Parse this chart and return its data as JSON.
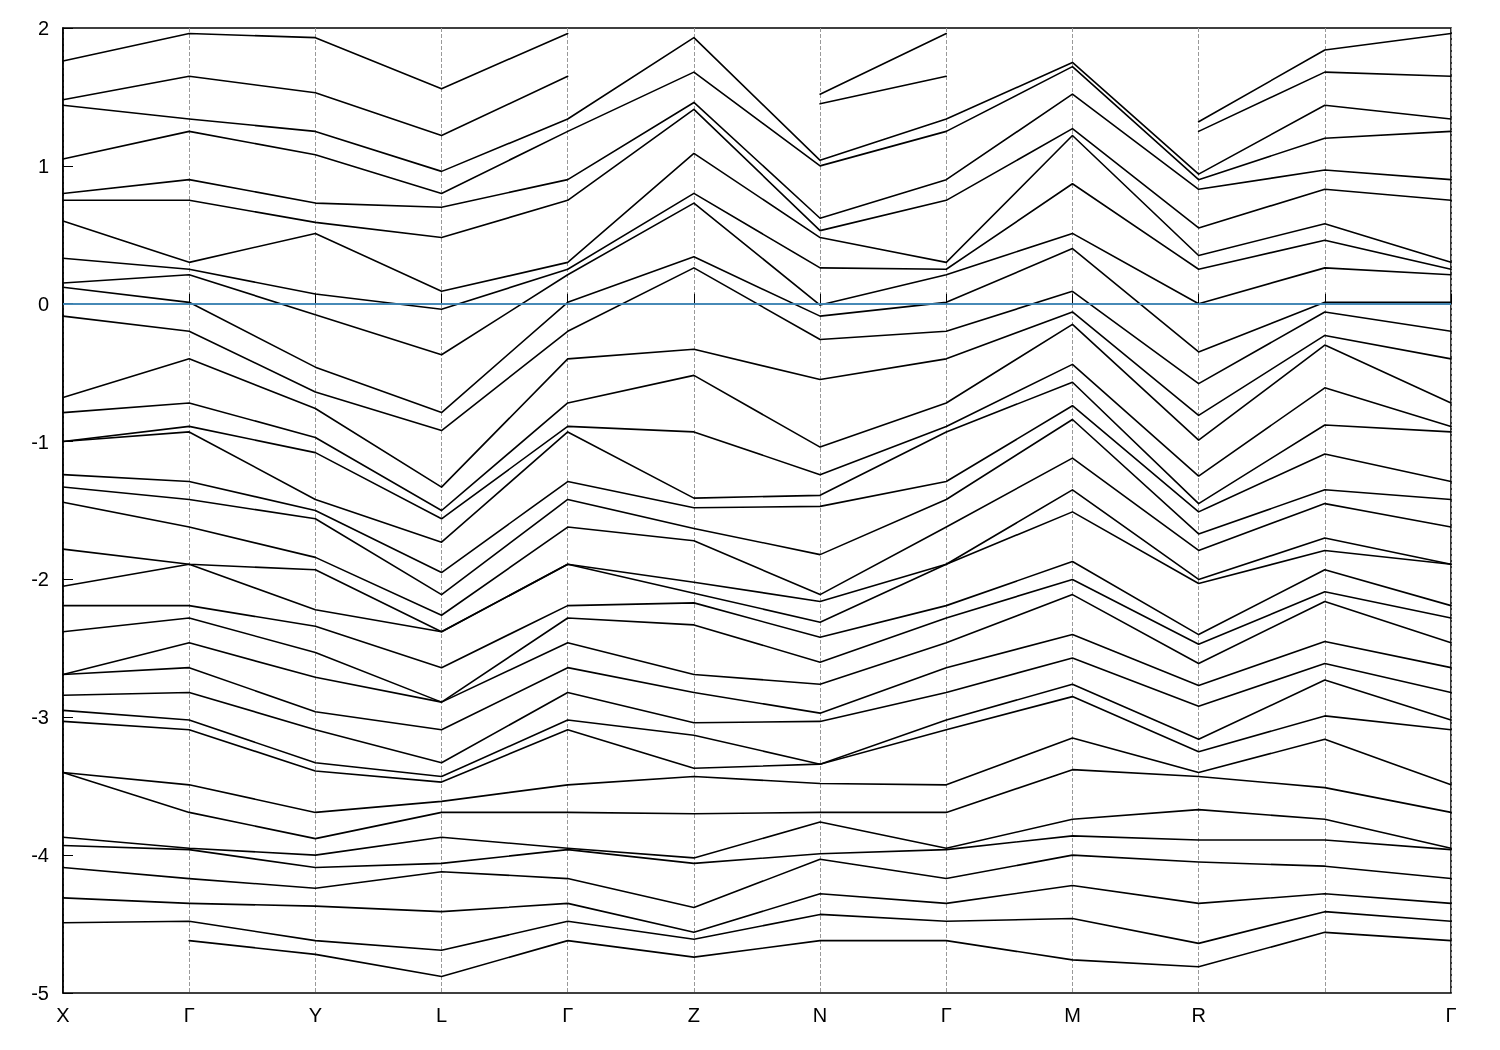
{
  "chart_data": {
    "type": "line",
    "categories": [
      "X",
      "Γ",
      "Y",
      "L",
      "Γ",
      "Z",
      "N",
      "Γ",
      "M",
      "R",
      null,
      "Γ"
    ],
    "ylim": [
      -5,
      2
    ],
    "yticks": [
      -5,
      -4,
      -3,
      -2,
      -1,
      0,
      1,
      2
    ],
    "grid": "x",
    "marker": "none",
    "line_style": "solid",
    "ref_lines": [
      {
        "axis": "y",
        "value": 0,
        "color": "#4aa3df"
      }
    ],
    "series": [
      {
        "color": "#000000",
        "values": [
          null,
          -4.62,
          -4.72,
          -4.88,
          -4.62,
          -4.74,
          -4.62,
          -4.62,
          -4.76,
          -4.81,
          -4.56,
          -4.62
        ]
      },
      {
        "color": "#000000",
        "values": [
          -4.49,
          -4.48,
          -4.62,
          -4.69,
          -4.48,
          -4.61,
          -4.43,
          -4.48,
          -4.46,
          -4.64,
          -4.41,
          -4.48
        ]
      },
      {
        "color": "#000000",
        "values": [
          -4.31,
          -4.35,
          -4.37,
          -4.41,
          -4.35,
          -4.56,
          -4.28,
          -4.35,
          -4.22,
          -4.35,
          -4.28,
          -4.35
        ]
      },
      {
        "color": "#000000",
        "values": [
          -4.09,
          -4.17,
          -4.24,
          -4.12,
          -4.17,
          -4.38,
          -4.03,
          -4.17,
          -4.0,
          -4.05,
          -4.08,
          -4.17
        ]
      },
      {
        "color": "#000000",
        "values": [
          -3.93,
          -3.96,
          -4.09,
          -4.06,
          -3.96,
          -4.06,
          -3.99,
          -3.96,
          -3.86,
          -3.89,
          -3.89,
          -3.96
        ]
      },
      {
        "color": "#000000",
        "values": [
          -3.87,
          -3.95,
          -4.0,
          -3.87,
          -3.95,
          -4.02,
          -3.76,
          -3.95,
          -3.74,
          -3.67,
          -3.74,
          -3.95
        ]
      },
      {
        "color": "#000000",
        "values": [
          -3.4,
          -3.69,
          -3.88,
          -3.69,
          -3.69,
          -3.7,
          -3.69,
          -3.69,
          -3.38,
          -3.43,
          -3.51,
          -3.69
        ]
      },
      {
        "color": "#000000",
        "values": [
          -3.4,
          -3.49,
          -3.69,
          -3.61,
          -3.49,
          -3.43,
          -3.48,
          -3.49,
          -3.15,
          -3.4,
          -3.16,
          -3.49
        ]
      },
      {
        "color": "#000000",
        "values": [
          -3.03,
          -3.09,
          -3.39,
          -3.47,
          -3.09,
          -3.37,
          -3.34,
          -3.09,
          -2.85,
          -3.25,
          -2.99,
          -3.09
        ]
      },
      {
        "color": "#000000",
        "values": [
          -2.95,
          -3.02,
          -3.33,
          -3.43,
          -3.02,
          -3.13,
          -3.34,
          -3.02,
          -2.76,
          -3.16,
          -2.73,
          -3.02
        ]
      },
      {
        "color": "#000000",
        "values": [
          -2.84,
          -2.82,
          -3.09,
          -3.33,
          -2.82,
          -3.04,
          -3.03,
          -2.82,
          -2.57,
          -2.92,
          -2.61,
          -2.82
        ]
      },
      {
        "color": "#000000",
        "values": [
          -2.69,
          -2.64,
          -2.96,
          -3.09,
          -2.64,
          -2.82,
          -2.97,
          -2.64,
          -2.4,
          -2.77,
          -2.45,
          -2.64
        ]
      },
      {
        "color": "#000000",
        "values": [
          -2.69,
          -2.46,
          -2.71,
          -2.89,
          -2.46,
          -2.69,
          -2.76,
          -2.46,
          -2.11,
          -2.61,
          -2.16,
          -2.46
        ]
      },
      {
        "color": "#000000",
        "values": [
          -2.38,
          -2.28,
          -2.53,
          -2.89,
          -2.28,
          -2.33,
          -2.6,
          -2.28,
          -2.0,
          -2.47,
          -2.09,
          -2.28
        ]
      },
      {
        "color": "#000000",
        "values": [
          -2.19,
          -2.19,
          -2.34,
          -2.64,
          -2.19,
          -2.17,
          -2.42,
          -2.19,
          -1.87,
          -2.4,
          -1.93,
          -2.19
        ]
      },
      {
        "color": "#000000",
        "values": [
          -2.05,
          -1.89,
          -2.22,
          -2.38,
          -1.89,
          -2.1,
          -2.31,
          -1.89,
          -1.51,
          -2.03,
          -1.79,
          -1.89
        ]
      },
      {
        "color": "#000000",
        "values": [
          -1.78,
          -1.89,
          -1.93,
          -2.38,
          -1.89,
          -2.02,
          -2.16,
          -1.89,
          -1.35,
          -2.0,
          -1.7,
          -1.89
        ]
      },
      {
        "color": "#000000",
        "values": [
          -1.44,
          -1.62,
          -1.84,
          -2.26,
          -1.62,
          -1.72,
          -2.11,
          -1.62,
          -1.12,
          -1.79,
          -1.45,
          -1.62
        ]
      },
      {
        "color": "#000000",
        "values": [
          -1.33,
          -1.42,
          -1.56,
          -2.11,
          -1.42,
          -1.63,
          -1.82,
          -1.42,
          -0.84,
          -1.67,
          -1.35,
          -1.42
        ]
      },
      {
        "color": "#000000",
        "values": [
          -1.24,
          -1.29,
          -1.5,
          -1.95,
          -1.29,
          -1.48,
          -1.47,
          -1.29,
          -0.74,
          -1.51,
          -1.09,
          -1.29
        ]
      },
      {
        "color": "#000000",
        "values": [
          -1.0,
          -0.93,
          -1.42,
          -1.73,
          -0.93,
          -1.41,
          -1.39,
          -0.93,
          -0.57,
          -1.45,
          -0.88,
          -0.93
        ]
      },
      {
        "color": "#000000",
        "values": [
          -1.0,
          -0.89,
          -1.08,
          -1.56,
          -0.89,
          -0.93,
          -1.24,
          -0.89,
          -0.44,
          -1.25,
          -0.61,
          -0.89
        ]
      },
      {
        "color": "#000000",
        "values": [
          -0.79,
          -0.72,
          -0.97,
          -1.5,
          -0.72,
          -0.52,
          -1.04,
          -0.72,
          -0.15,
          -0.99,
          -0.3,
          -0.72
        ]
      },
      {
        "color": "#000000",
        "values": [
          -0.68,
          -0.4,
          -0.76,
          -1.33,
          -0.4,
          -0.33,
          -0.55,
          -0.4,
          -0.06,
          -0.81,
          -0.23,
          -0.4
        ]
      },
      {
        "color": "#000000",
        "values": [
          -0.09,
          -0.2,
          -0.64,
          -0.92,
          -0.2,
          0.26,
          -0.26,
          -0.2,
          0.09,
          -0.58,
          -0.06,
          -0.2
        ]
      },
      {
        "color": "#000000",
        "values": [
          0.12,
          0.01,
          -0.46,
          -0.79,
          0.01,
          0.34,
          -0.09,
          0.01,
          0.4,
          -0.35,
          0.01,
          0.01
        ]
      },
      {
        "color": "#000000",
        "values": [
          0.15,
          0.21,
          -0.08,
          -0.37,
          0.21,
          0.73,
          -0.01,
          0.21,
          0.51,
          0.0,
          0.26,
          0.21
        ]
      },
      {
        "color": "#000000",
        "values": [
          0.33,
          0.25,
          0.07,
          -0.04,
          0.25,
          0.8,
          0.26,
          0.25,
          0.87,
          0.25,
          0.46,
          0.25
        ]
      },
      {
        "color": "#000000",
        "values": [
          0.6,
          0.3,
          0.51,
          0.09,
          0.3,
          1.09,
          0.48,
          0.3,
          1.22,
          0.35,
          0.58,
          0.3
        ]
      },
      {
        "color": "#000000",
        "values": [
          0.75,
          0.75,
          0.59,
          0.48,
          0.75,
          1.41,
          0.53,
          0.75,
          1.27,
          0.55,
          0.83,
          0.75
        ]
      },
      {
        "color": "#000000",
        "values": [
          0.8,
          0.9,
          0.73,
          0.7,
          0.9,
          1.46,
          0.62,
          0.9,
          1.52,
          0.83,
          0.97,
          0.9
        ]
      },
      {
        "color": "#000000",
        "values": [
          1.05,
          1.25,
          1.08,
          0.8,
          1.25,
          1.68,
          1.0,
          1.25,
          1.72,
          0.9,
          1.2,
          1.25
        ]
      },
      {
        "color": "#000000",
        "values": [
          1.44,
          1.34,
          1.25,
          0.96,
          1.34,
          1.93,
          1.04,
          1.34,
          1.75,
          0.94,
          1.44,
          1.34
        ]
      },
      {
        "color": "#000000",
        "values": [
          1.48,
          1.65,
          1.53,
          1.22,
          1.65,
          null,
          1.45,
          1.65,
          null,
          1.25,
          1.68,
          1.65
        ]
      },
      {
        "color": "#000000",
        "values": [
          1.76,
          1.96,
          1.93,
          1.56,
          1.96,
          null,
          1.52,
          1.96,
          null,
          1.32,
          1.84,
          1.96
        ]
      }
    ]
  }
}
